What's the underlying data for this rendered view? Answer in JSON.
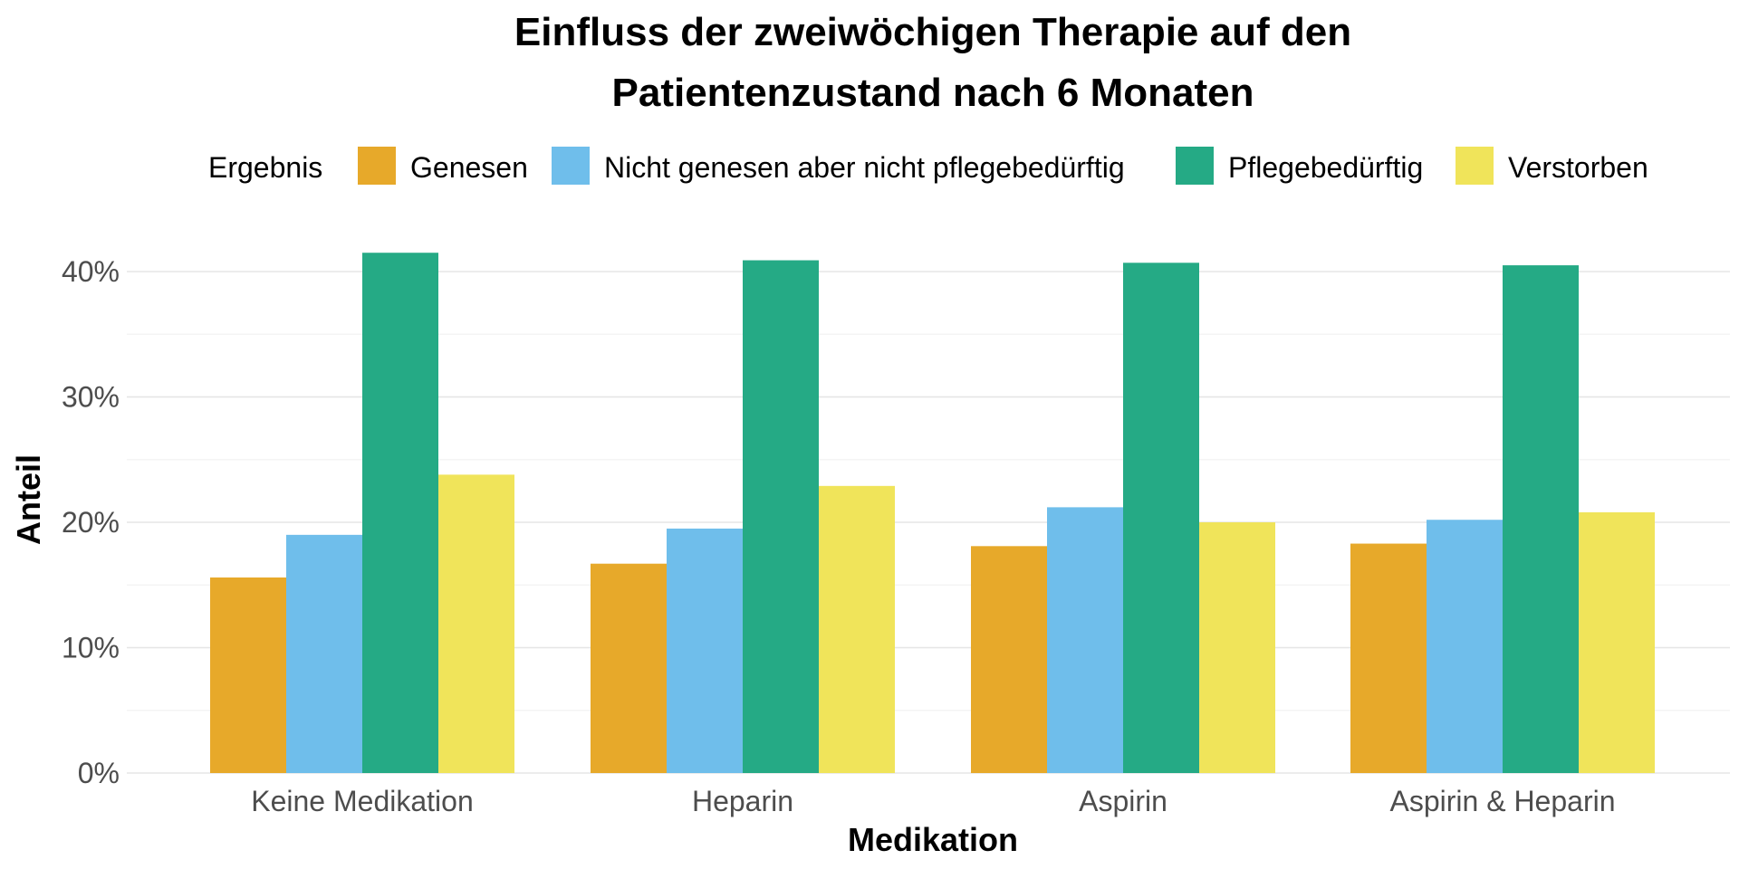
{
  "chart_data": {
    "type": "bar",
    "title_lines": [
      "Einfluss der zweiwöchigen Therapie auf den",
      "Patientenzustand nach 6 Monaten"
    ],
    "xlabel": "Medikation",
    "ylabel": "Anteil",
    "legend_title": "Ergebnis",
    "legend_position": "top",
    "grid": true,
    "ylim": [
      0,
      0.42
    ],
    "yticks": [
      0,
      0.1,
      0.2,
      0.3,
      0.4
    ],
    "ytick_labels": [
      "0%",
      "10%",
      "20%",
      "30%",
      "40%"
    ],
    "categories": [
      "Keine Medikation",
      "Heparin",
      "Aspirin",
      "Aspirin & Heparin"
    ],
    "series": [
      {
        "name": "Genesen",
        "color": "#E7A92A",
        "values": [
          0.156,
          0.167,
          0.181,
          0.183
        ]
      },
      {
        "name": "Nicht genesen aber nicht pflegebedürftig",
        "color": "#6FBEEB",
        "values": [
          0.19,
          0.195,
          0.212,
          0.202
        ]
      },
      {
        "name": "Pflegebedürftig",
        "color": "#25AA85",
        "values": [
          0.415,
          0.409,
          0.407,
          0.405
        ]
      },
      {
        "name": "Verstorben",
        "color": "#F0E45A",
        "values": [
          0.238,
          0.229,
          0.2,
          0.208
        ]
      }
    ]
  }
}
